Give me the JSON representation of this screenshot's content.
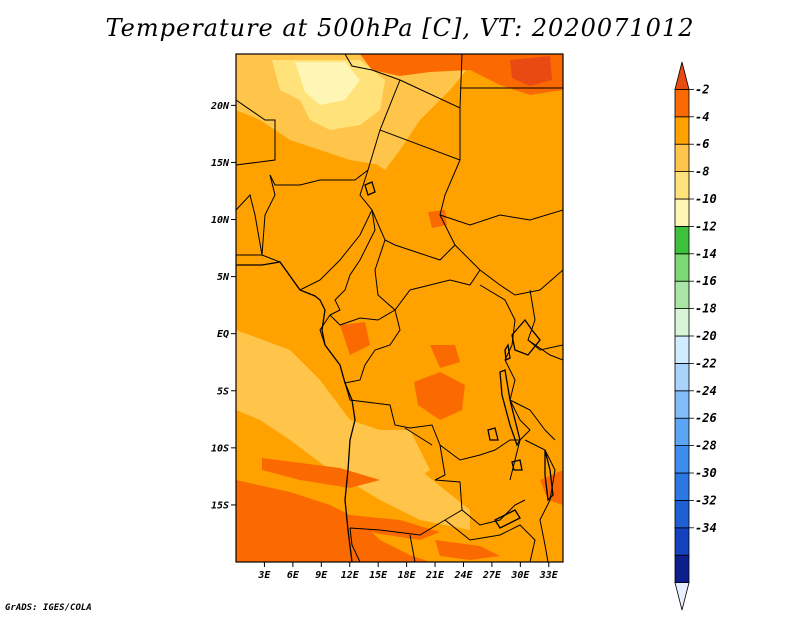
{
  "title": "Temperature at 500hPa [C], VT: 2020071012",
  "credit": "GrADS: IGES/COLA",
  "map": {
    "type": "filled-contour-map",
    "variable": "Temperature at 500hPa",
    "units": "C",
    "valid_time": "2020071012",
    "lon_range": [
      0,
      34.5
    ],
    "lat_range": [
      -20,
      24.5
    ],
    "lon_ticks": [
      {
        "value": 3,
        "label": "3E"
      },
      {
        "value": 6,
        "label": "6E"
      },
      {
        "value": 9,
        "label": "9E"
      },
      {
        "value": 12,
        "label": "12E"
      },
      {
        "value": 15,
        "label": "15E"
      },
      {
        "value": 18,
        "label": "18E"
      },
      {
        "value": 21,
        "label": "21E"
      },
      {
        "value": 24,
        "label": "24E"
      },
      {
        "value": 27,
        "label": "27E"
      },
      {
        "value": 30,
        "label": "30E"
      },
      {
        "value": 33,
        "label": "33E"
      }
    ],
    "lat_ticks": [
      {
        "value": 20,
        "label": "20N"
      },
      {
        "value": 15,
        "label": "15N"
      },
      {
        "value": 10,
        "label": "10N"
      },
      {
        "value": 5,
        "label": "5N"
      },
      {
        "value": 0,
        "label": "EQ"
      },
      {
        "value": -5,
        "label": "5S"
      },
      {
        "value": -10,
        "label": "10S"
      },
      {
        "value": -15,
        "label": "15S"
      }
    ]
  },
  "colorbar": {
    "labels": [
      "-2",
      "-4",
      "-6",
      "-8",
      "-10",
      "-12",
      "-14",
      "-16",
      "-18",
      "-20",
      "-22",
      "-24",
      "-26",
      "-28",
      "-30",
      "-32",
      "-34"
    ],
    "colors": [
      "#e8f0ff",
      "#0c1f8c",
      "#1341bf",
      "#1e5fd4",
      "#2b78e4",
      "#3b8ef0",
      "#5aa5f5",
      "#82bdfa",
      "#a8d4fc",
      "#d2ecff",
      "#d8f5d8",
      "#a9e6a5",
      "#7bd872",
      "#3ec13a",
      "#fff6b5",
      "#ffe27a",
      "#ffc54a",
      "#ffa200",
      "#fb6a00",
      "#e84a12"
    ]
  }
}
